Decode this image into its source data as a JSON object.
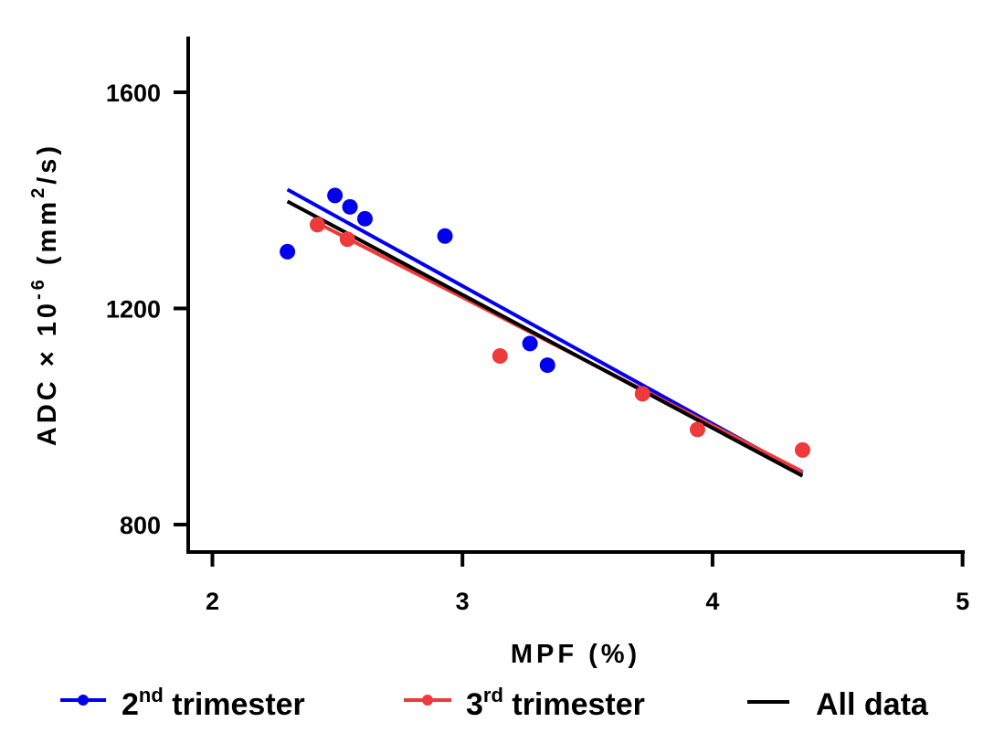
{
  "chart_data": {
    "type": "scatter",
    "xlabel": "MPF (%)",
    "ylabel": {
      "base": "ADC × 10",
      "exponent": "-6",
      "unit_open": "(mm",
      "unit_exponent": "2",
      "unit_close": "/s)"
    },
    "xlim": [
      1.9,
      5
    ],
    "ylim": [
      750,
      1710
    ],
    "xticks": [
      2,
      3,
      4,
      5
    ],
    "yticks": [
      800,
      1200,
      1600
    ],
    "grid": false,
    "legend_position": "bottom",
    "series": [
      {
        "name": "2nd trimester",
        "legend": {
          "base": "2",
          "sup": "nd",
          "rest": "trimester"
        },
        "color": "#0000ee",
        "points": [
          {
            "x": 2.3,
            "y": 1305
          },
          {
            "x": 2.49,
            "y": 1409
          },
          {
            "x": 2.55,
            "y": 1388
          },
          {
            "x": 2.61,
            "y": 1366
          },
          {
            "x": 2.93,
            "y": 1334
          },
          {
            "x": 3.27,
            "y": 1135
          },
          {
            "x": 3.34,
            "y": 1095
          }
        ],
        "fit": [
          {
            "x": 2.3,
            "y": 1420
          },
          {
            "x": 4.36,
            "y": 895
          }
        ]
      },
      {
        "name": "3rd trimester",
        "legend": {
          "base": "3",
          "sup": "rd",
          "rest": "trimester"
        },
        "color": "#ee3a3a",
        "points": [
          {
            "x": 2.42,
            "y": 1355
          },
          {
            "x": 2.54,
            "y": 1328
          },
          {
            "x": 3.15,
            "y": 1112
          },
          {
            "x": 3.72,
            "y": 1042
          },
          {
            "x": 3.94,
            "y": 976
          },
          {
            "x": 4.36,
            "y": 938
          }
        ],
        "fit": [
          {
            "x": 2.42,
            "y": 1358
          },
          {
            "x": 4.36,
            "y": 898
          }
        ]
      },
      {
        "name": "All data",
        "legend": {
          "base": "All data",
          "sup": "",
          "rest": ""
        },
        "color": "#000000",
        "points": [],
        "fit": [
          {
            "x": 2.3,
            "y": 1398
          },
          {
            "x": 4.36,
            "y": 890
          }
        ]
      }
    ]
  }
}
